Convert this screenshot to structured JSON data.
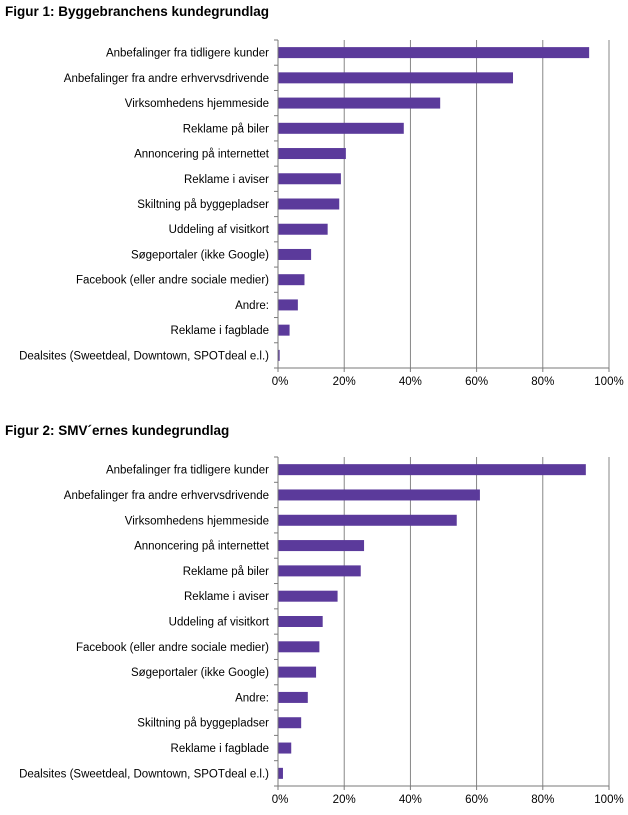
{
  "chart_data": [
    {
      "type": "bar",
      "orientation": "horizontal",
      "title": "Figur 1: Byggebranchens kundegrundlag",
      "categories": [
        "Anbefalinger fra tidligere kunder",
        "Anbefalinger fra andre erhvervsdrivende",
        "Virksomhedens hjemmeside",
        "Reklame på biler",
        "Annoncering på internettet",
        "Reklame i aviser",
        "Skiltning på byggepladser",
        "Uddeling af visitkort",
        "Søgeportaler (ikke Google)",
        "Facebook (eller andre sociale medier)",
        "Andre:",
        "Reklame i fagblade",
        "Dealsites (Sweetdeal, Downtown, SPOTdeal e.l.)"
      ],
      "values": [
        94,
        71,
        49,
        38,
        20.5,
        19,
        18.5,
        15,
        10,
        8,
        6,
        3.5,
        0.5
      ],
      "xlim": [
        0,
        100
      ],
      "xticks": [
        "0%",
        "20%",
        "40%",
        "60%",
        "80%",
        "100%"
      ],
      "grid": "vertical",
      "color": "#5b3a9b"
    },
    {
      "type": "bar",
      "orientation": "horizontal",
      "title": "Figur 2: SMV´ernes kundegrundlag",
      "categories": [
        "Anbefalinger fra tidligere kunder",
        "Anbefalinger fra andre erhvervsdrivende",
        "Virksomhedens hjemmeside",
        "Annoncering på internettet",
        "Reklame på biler",
        "Reklame i aviser",
        "Uddeling af visitkort",
        "Facebook (eller andre sociale medier)",
        "Søgeportaler (ikke Google)",
        "Andre:",
        "Skiltning på byggepladser",
        "Reklame i fagblade",
        "Dealsites (Sweetdeal, Downtown, SPOTdeal e.l.)"
      ],
      "values": [
        93,
        61,
        54,
        26,
        25,
        18,
        13.5,
        12.5,
        11.5,
        9,
        7,
        4,
        1.5
      ],
      "xlim": [
        0,
        100
      ],
      "xticks": [
        "0%",
        "20%",
        "40%",
        "60%",
        "80%",
        "100%"
      ],
      "grid": "vertical",
      "color": "#5b3a9b"
    }
  ]
}
